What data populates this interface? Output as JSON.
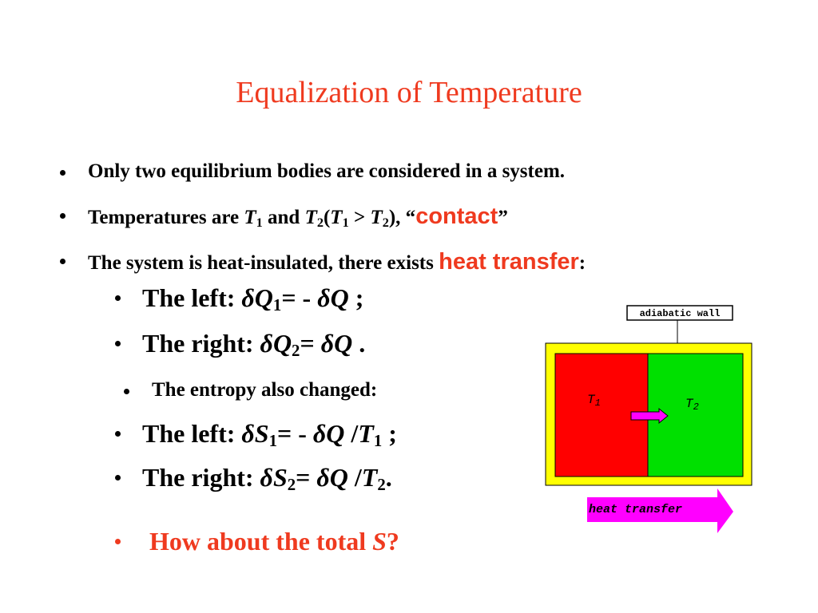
{
  "title": "Equalization of Temperature",
  "bullets": [
    [
      "Only two equilibrium bodies are considered in a system."
    ],
    [
      "Temperatures are ",
      "T",
      "1",
      " and ",
      "T",
      "2",
      "(",
      "T",
      "1",
      " > ",
      "T",
      "2",
      "), “",
      "contact",
      "”"
    ],
    [
      "The system is heat-insulated, there exists ",
      "heat transfer",
      ":"
    ]
  ],
  "sub_bullets": [
    [
      "The left: ",
      "δ",
      "Q",
      "1",
      "= - ",
      "δ",
      "Q",
      " ;"
    ],
    [
      "The right: ",
      "δ",
      "Q",
      "2",
      "= ",
      "δ",
      "Q",
      " ."
    ],
    [
      "The entropy also changed:"
    ],
    [
      "The left: ",
      "δ",
      "S",
      "1",
      "= - ",
      "δ",
      "Q",
      " /",
      "T",
      "1",
      " ;"
    ],
    [
      "The right: ",
      "δ",
      "S",
      "2",
      "= ",
      "δ",
      "Q",
      " /",
      "T",
      "2",
      "."
    ],
    [
      "How about the total ",
      "S",
      "?"
    ]
  ],
  "diagram": {
    "wall_label": "adiabatic wall",
    "left": [
      "T",
      "1"
    ],
    "right": [
      "T",
      "2"
    ],
    "arrow_label": "heat transfer"
  }
}
